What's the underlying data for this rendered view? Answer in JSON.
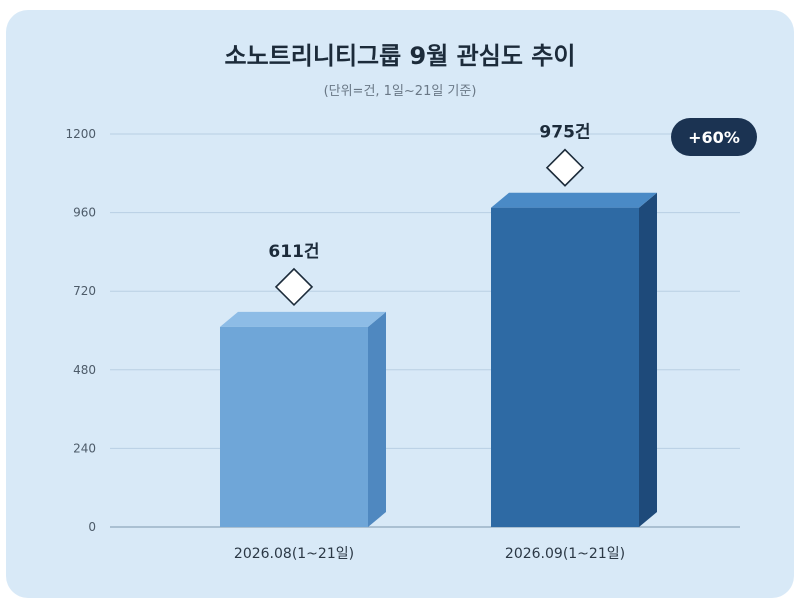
{
  "chart_data": {
    "type": "bar",
    "title": "소노트리니티그룹 9월 관심도 추이",
    "subtitle": "(단위=건, 1일~21일 기준)",
    "categories": [
      "2026.08(1~21일)",
      "2026.09(1~21일)"
    ],
    "values": [
      611,
      975
    ],
    "value_labels": [
      "611건",
      "975건"
    ],
    "ylim": [
      0,
      1200
    ],
    "yticks": [
      0,
      240,
      480,
      720,
      960,
      1200
    ],
    "grid": true,
    "annotation": "+60%",
    "colors": {
      "bar1": "#6fa6d8",
      "bar2": "#2e6aa4",
      "badge": "#1b3352",
      "grid": "#b9cfe3"
    }
  }
}
